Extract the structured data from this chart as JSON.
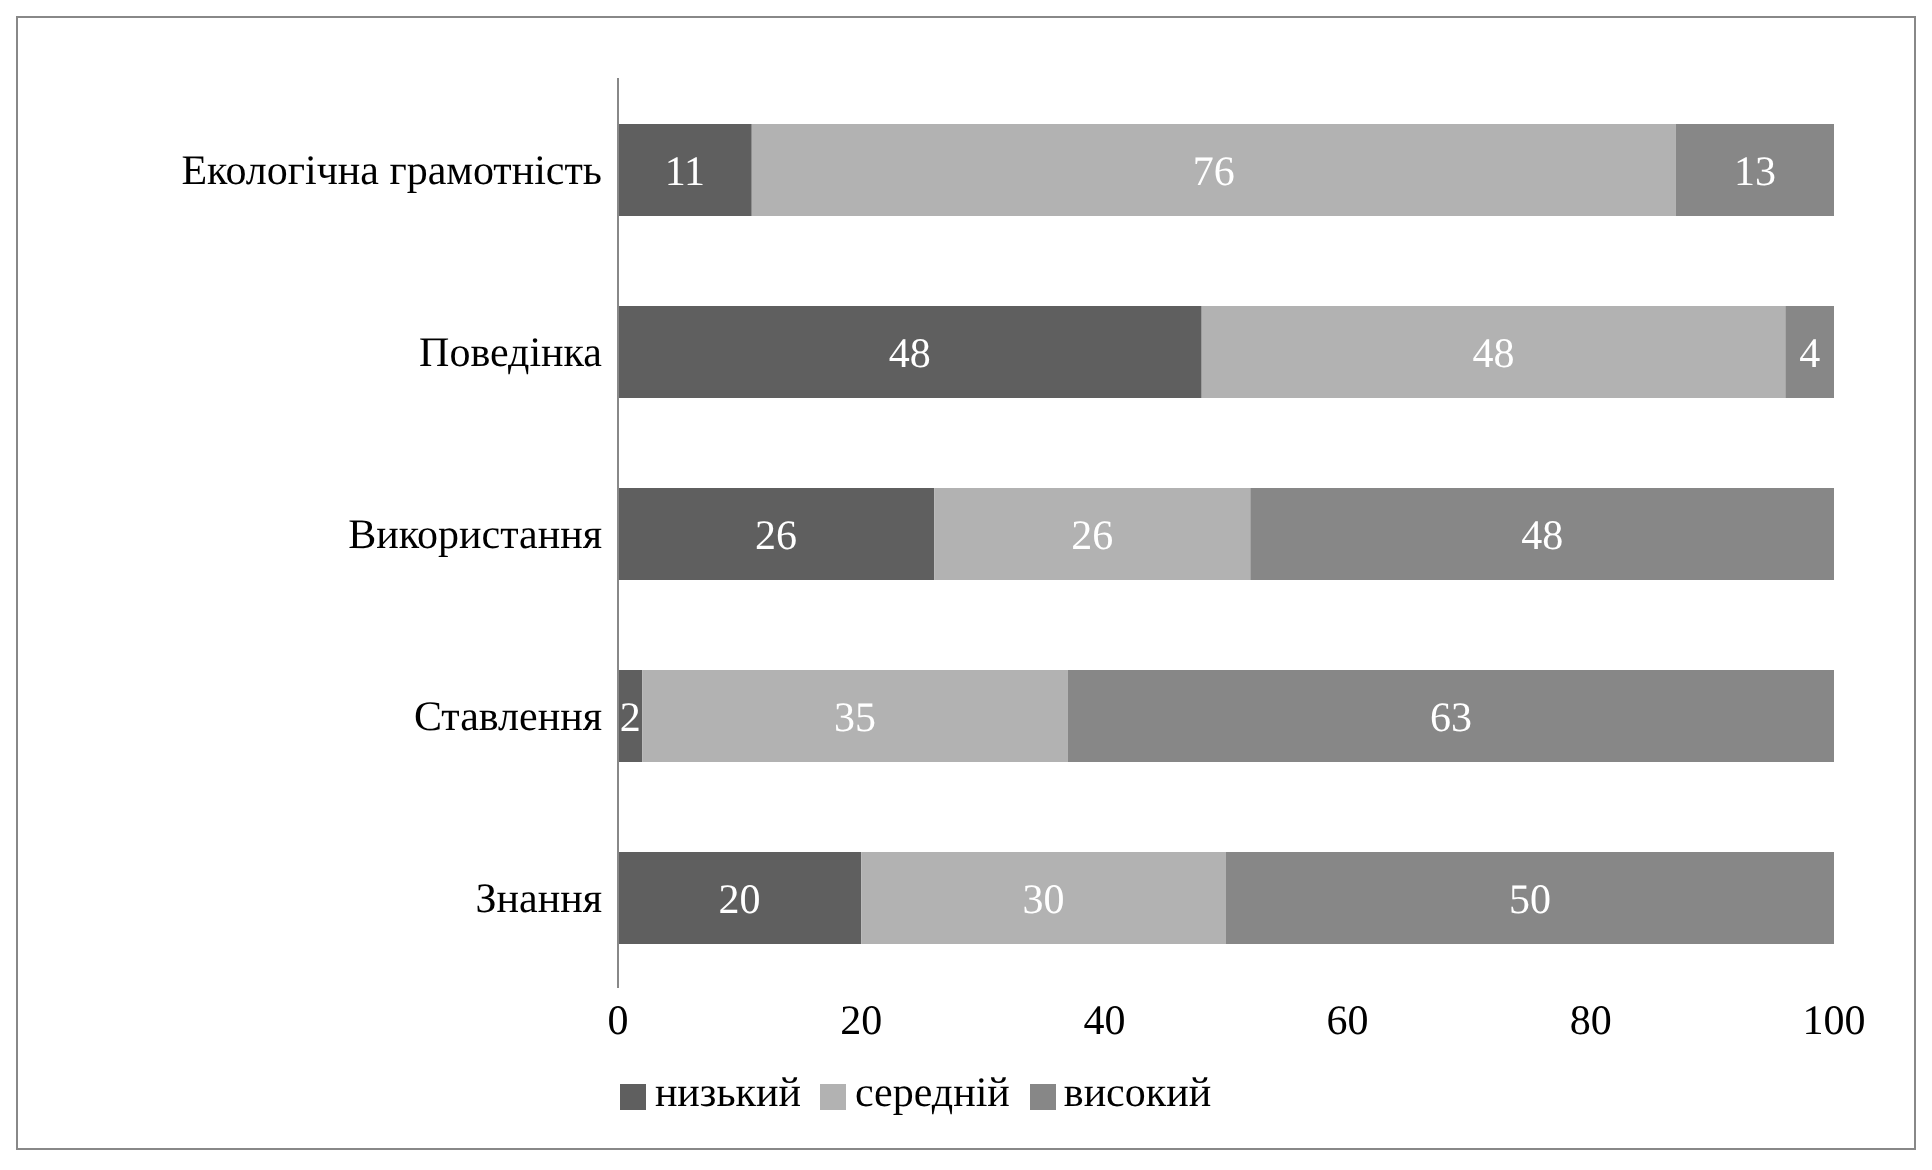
{
  "chart_data": {
    "type": "bar",
    "orientation": "horizontal",
    "stacked": true,
    "categories": [
      "Екологічна грамотність",
      "Поведінка",
      "Використання",
      "Ставлення",
      "Знання"
    ],
    "series": [
      {
        "name": "низький",
        "color": "#5f5f5f",
        "values": [
          11,
          48,
          26,
          2,
          20
        ]
      },
      {
        "name": "середній",
        "color": "#b2b2b2",
        "values": [
          76,
          48,
          26,
          35,
          30
        ]
      },
      {
        "name": "високий",
        "color": "#878787",
        "values": [
          13,
          4,
          48,
          63,
          50
        ]
      }
    ],
    "xlim": [
      0,
      100
    ],
    "xticks": [
      0,
      20,
      40,
      60,
      80,
      100
    ],
    "grid": false,
    "legend": "bottom",
    "data_labels": true
  }
}
